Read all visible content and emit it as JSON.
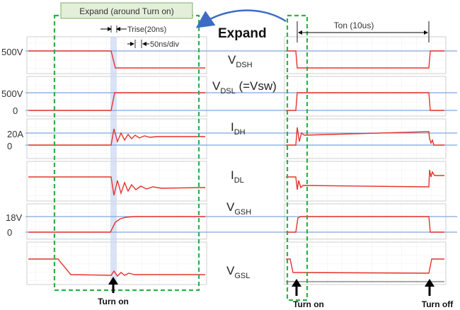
{
  "expand_box_title": "Expand (around Turn on)",
  "expand_word": "Expand",
  "trise_label": "Trise(20ns)",
  "timebase_label": "50ns/div",
  "ton_label": "Ton (10us)",
  "left_axis_labels": {
    "v500a": "500V",
    "v500b": "500V",
    "zero1": "0",
    "a20": "20A",
    "zero2": "0",
    "v18": "18V",
    "zero3": "0"
  },
  "signals": {
    "vdsh": {
      "main": "V",
      "sub": "DSH",
      "suffix": ""
    },
    "vdsl": {
      "main": "V",
      "sub": "DSL",
      "suffix": " (=Vsw)"
    },
    "idh": {
      "main": "I",
      "sub": "DH",
      "suffix": ""
    },
    "idl": {
      "main": "I",
      "sub": "DL",
      "suffix": ""
    },
    "vgsh": {
      "main": "V",
      "sub": "GSH",
      "suffix": ""
    },
    "vgsl": {
      "main": "V",
      "sub": "GSL",
      "suffix": ""
    }
  },
  "bottom_labels": {
    "left_turn_on": "Turn on",
    "right_turn_on": "Turn on",
    "right_turn_off": "Turn off"
  },
  "colors": {
    "trace": "#e8322e",
    "reference_line": "#7fa7dc",
    "highlight_box": "#2eb04a",
    "expand_arrow": "#3d6cc4",
    "title_box_fill": "#e3efd9"
  }
}
